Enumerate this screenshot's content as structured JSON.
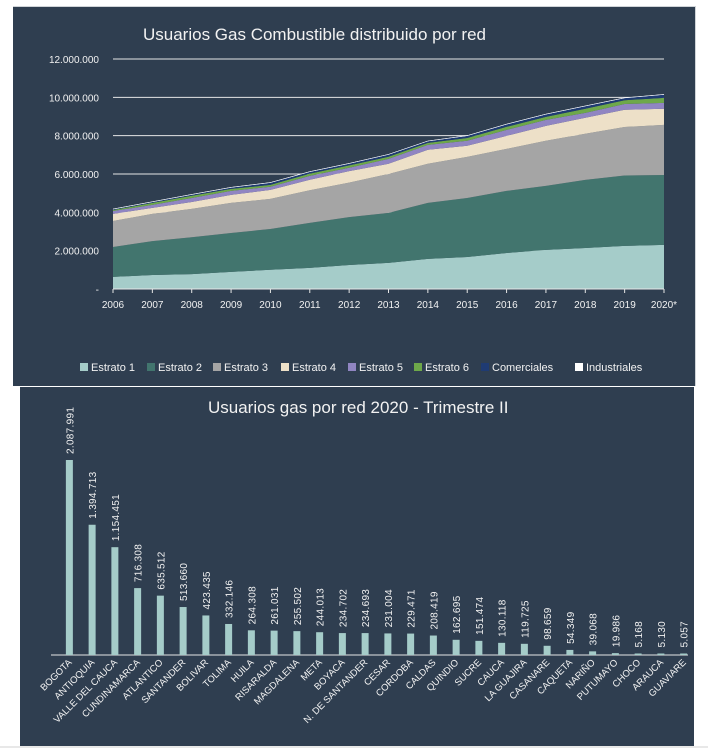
{
  "chart_data": [
    {
      "type": "area",
      "stacked": true,
      "title": "Usuarios Gas Combustible distribuido por red",
      "xlabel": "",
      "ylabel": "",
      "x": [
        "2006",
        "2007",
        "2008",
        "2009",
        "2010",
        "2011",
        "2012",
        "2013",
        "2014",
        "2015",
        "2016",
        "2017",
        "2018",
        "2019",
        "2020*"
      ],
      "ylim": [
        0,
        12000000
      ],
      "yticks": [
        0,
        2000000,
        4000000,
        6000000,
        8000000,
        10000000,
        12000000
      ],
      "ytick_labels": [
        "-",
        "2.000.000",
        "4.000.000",
        "6.000.000",
        "8.000.000",
        "10.000.000",
        "12.000.000"
      ],
      "grid": true,
      "legend_position": "bottom",
      "series": [
        {
          "name": "Estrato 1",
          "color": "#a5ccc9",
          "values": [
            630000,
            730000,
            780000,
            890000,
            1000000,
            1100000,
            1250000,
            1360000,
            1570000,
            1670000,
            1880000,
            2040000,
            2140000,
            2250000,
            2300000
          ]
        },
        {
          "name": "Estrato 2",
          "color": "#42756e",
          "values": [
            1560000,
            1770000,
            1920000,
            2030000,
            2130000,
            2350000,
            2500000,
            2610000,
            2920000,
            3080000,
            3240000,
            3340000,
            3550000,
            3670000,
            3650000
          ]
        },
        {
          "name": "Estrato 3",
          "color": "#a5a5a5",
          "values": [
            1360000,
            1420000,
            1480000,
            1570000,
            1570000,
            1700000,
            1800000,
            2030000,
            2040000,
            2140000,
            2190000,
            2350000,
            2410000,
            2530000,
            2610000
          ]
        },
        {
          "name": "Estrato 4",
          "color": "#ede0c8",
          "values": [
            370000,
            310000,
            360000,
            420000,
            470000,
            550000,
            600000,
            530000,
            730000,
            580000,
            680000,
            780000,
            830000,
            900000,
            840000
          ]
        },
        {
          "name": "Estrato 5",
          "color": "#9085c2",
          "values": [
            150000,
            160000,
            210000,
            210000,
            160000,
            200000,
            180000,
            260000,
            260000,
            260000,
            310000,
            310000,
            260000,
            300000,
            310000
          ]
        },
        {
          "name": "Estrato 6",
          "color": "#6ea84a",
          "values": [
            50000,
            100000,
            110000,
            100000,
            100000,
            120000,
            120000,
            110000,
            100000,
            150000,
            160000,
            160000,
            210000,
            200000,
            260000
          ]
        },
        {
          "name": "Comerciales",
          "color": "#1f3b73",
          "values": [
            50000,
            60000,
            70000,
            80000,
            120000,
            100000,
            100000,
            120000,
            100000,
            120000,
            140000,
            140000,
            150000,
            120000,
            180000
          ]
        },
        {
          "name": "Industriales",
          "color": "#ffffff",
          "values": [
            4000,
            4000,
            4000,
            4000,
            4000,
            4000,
            4000,
            4000,
            4000,
            4000,
            4000,
            4000,
            4000,
            4000,
            4000
          ]
        }
      ]
    },
    {
      "type": "bar",
      "title": "Usuarios gas por red 2020 - Trimestre II",
      "xlabel": "",
      "ylabel": "",
      "ylim": [
        0,
        2087991
      ],
      "grid": false,
      "color": "#a5ccc9",
      "categories": [
        "BOGOTA",
        "ANTIOQUIA",
        "VALLE DEL CAUCA",
        "CUNDINAMARCA",
        "ATLANTICO",
        "SANTANDER",
        "BOLIVAR",
        "TOLIMA",
        "HUILA",
        "RISARALDA",
        "MAGDALENA",
        "META",
        "BOYACA",
        "N. DE SANTANDER",
        "CESAR",
        "CORDOBA",
        "CALDAS",
        "QUINDIO",
        "SUCRE",
        "CAUCA",
        "LA GUAJIRA",
        "CASANARE",
        "CAQUETA",
        "NARIÑO",
        "PUTUMAYO",
        "CHOCO",
        "ARAUCA",
        "GUAVIARE"
      ],
      "values": [
        2087991,
        1394713,
        1154451,
        716308,
        635512,
        513660,
        423435,
        332146,
        264308,
        261031,
        255502,
        244013,
        234702,
        234693,
        231004,
        229471,
        208419,
        162695,
        151474,
        130118,
        119725,
        98659,
        54349,
        39068,
        19986,
        5168,
        5130,
        5057
      ],
      "labels": [
        "2.087.991",
        "1.394.713",
        "1.154.451",
        "716.308",
        "635.512",
        "513.660",
        "423.435",
        "332.146",
        "264.308",
        "261.031",
        "255.502",
        "244.013",
        "234.702",
        "234.693",
        "231.004",
        "229.471",
        "208.419",
        "162.695",
        "151.474",
        "130.118",
        "119.725",
        "98.659",
        "54.349",
        "39.068",
        "19.986",
        "5.168",
        "5.130",
        "5.057"
      ]
    }
  ]
}
